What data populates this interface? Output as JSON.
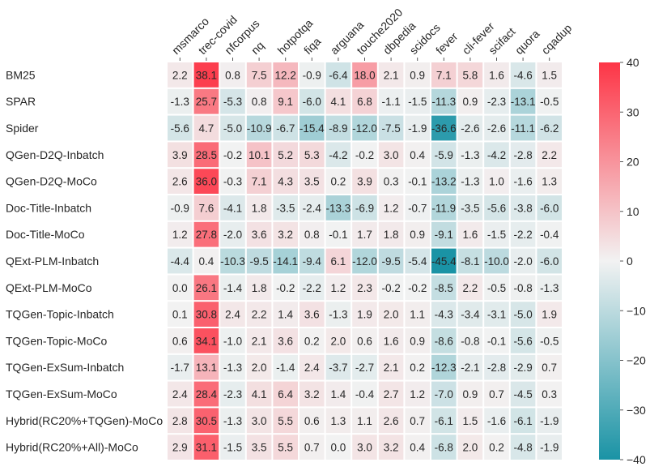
{
  "chart_data": {
    "type": "heatmap",
    "title": "",
    "xlabel": "",
    "ylabel": "",
    "columns": [
      "msmarco",
      "trec-covid",
      "nfcorpus",
      "nq",
      "hotpotqa",
      "fiqa",
      "arguana",
      "touche2020",
      "dbpedia",
      "scidocs",
      "fever",
      "cli-fever",
      "scifact",
      "quora",
      "cqadup"
    ],
    "rows": [
      "BM25",
      "SPAR",
      "Spider",
      "QGen-D2Q-Inbatch",
      "QGen-D2Q-MoCo",
      "Doc-Title-Inbatch",
      "Doc-Title-MoCo",
      "QExt-PLM-Inbatch",
      "QExt-PLM-MoCo",
      "TQGen-Topic-Inbatch",
      "TQGen-Topic-MoCo",
      "TQGen-ExSum-Inbatch",
      "TQGen-ExSum-MoCo",
      "Hybrid(RC20%+TQGen)-MoCo",
      "Hybrid(RC20%+All)-MoCo"
    ],
    "values": [
      [
        2.2,
        38.1,
        0.8,
        7.5,
        12.2,
        -0.9,
        -6.4,
        18.0,
        2.1,
        0.9,
        7.1,
        5.8,
        1.6,
        -4.6,
        1.5
      ],
      [
        -1.3,
        25.7,
        -5.3,
        0.8,
        9.1,
        -6.0,
        4.1,
        6.8,
        -1.1,
        -1.5,
        -11.3,
        0.9,
        -2.3,
        -13.1,
        -0.5
      ],
      [
        -5.6,
        4.7,
        -5.0,
        -10.9,
        -6.7,
        -15.4,
        -8.9,
        -12.0,
        -7.5,
        -1.9,
        -36.6,
        -2.6,
        -2.6,
        -11.1,
        -6.2
      ],
      [
        3.9,
        28.5,
        -0.2,
        10.1,
        5.2,
        5.3,
        -4.2,
        -0.2,
        3.0,
        0.4,
        -5.9,
        -1.3,
        -4.2,
        -2.8,
        2.2
      ],
      [
        2.6,
        36.0,
        -0.3,
        7.1,
        4.3,
        3.5,
        0.2,
        3.9,
        0.3,
        -0.1,
        -13.2,
        -1.3,
        1.0,
        -1.6,
        1.3
      ],
      [
        -0.9,
        7.6,
        -4.1,
        1.8,
        -3.5,
        -2.4,
        -13.3,
        -6.9,
        1.2,
        -0.7,
        -11.9,
        -3.5,
        -5.6,
        -3.8,
        -6.0
      ],
      [
        1.2,
        27.8,
        -2.0,
        3.6,
        3.2,
        0.8,
        -0.1,
        1.7,
        1.8,
        0.9,
        -9.1,
        1.6,
        -1.5,
        -2.2,
        -0.4
      ],
      [
        -4.4,
        0.4,
        -10.3,
        -9.5,
        -14.1,
        -9.4,
        6.1,
        -12.0,
        -9.5,
        -5.4,
        -45.4,
        -8.1,
        -10.0,
        -2.0,
        -6.0
      ],
      [
        0.0,
        26.1,
        -1.4,
        1.8,
        -0.2,
        -2.2,
        1.2,
        2.3,
        -0.2,
        -0.2,
        -8.5,
        2.2,
        -0.5,
        -0.8,
        -1.3
      ],
      [
        0.1,
        30.8,
        2.4,
        2.2,
        1.4,
        3.6,
        -1.3,
        1.9,
        2.0,
        1.1,
        -4.3,
        -3.4,
        -3.1,
        -5.0,
        1.9
      ],
      [
        0.6,
        34.1,
        -1.0,
        2.1,
        3.6,
        0.2,
        2.0,
        0.6,
        1.6,
        0.9,
        -8.6,
        -0.8,
        -0.1,
        -5.6,
        -0.5
      ],
      [
        -1.7,
        13.1,
        -1.3,
        2.0,
        -1.4,
        2.4,
        -3.7,
        -2.7,
        2.1,
        0.2,
        -12.3,
        -2.1,
        -2.8,
        -2.9,
        0.7
      ],
      [
        2.4,
        28.4,
        -2.3,
        4.1,
        6.4,
        3.2,
        1.4,
        -0.4,
        2.7,
        1.2,
        -7.0,
        0.9,
        0.7,
        -4.5,
        0.3
      ],
      [
        2.8,
        30.5,
        -1.3,
        3.0,
        5.5,
        0.6,
        1.3,
        1.1,
        2.6,
        0.7,
        -6.1,
        1.5,
        -1.6,
        -6.1,
        -1.9
      ],
      [
        2.9,
        31.1,
        -1.5,
        3.5,
        5.5,
        0.7,
        0.0,
        3.0,
        3.2,
        0.4,
        -6.8,
        2.0,
        0.2,
        -4.8,
        -1.9
      ]
    ],
    "colorbar": {
      "vmin": -40,
      "vmax": 40,
      "ticks": [
        "40",
        "30",
        "20",
        "10",
        "0",
        "−10",
        "−20",
        "−30",
        "−40"
      ],
      "tick_values": [
        40,
        30,
        20,
        10,
        0,
        -10,
        -20,
        -30,
        -40
      ]
    },
    "colors": {
      "negative": "#1a93a5",
      "center": "#f2f2f2",
      "positive": "#fd3546",
      "grid": "#ffffff",
      "text": "#262626"
    }
  }
}
